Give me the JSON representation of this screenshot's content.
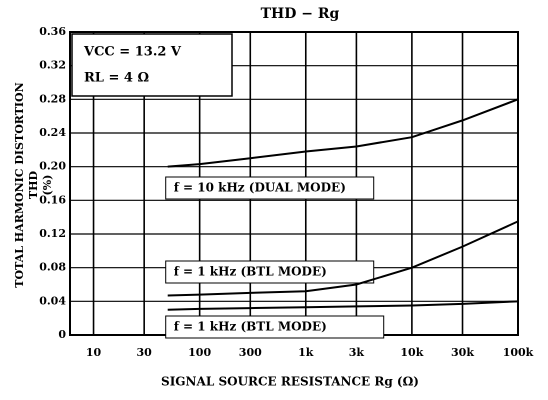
{
  "chart_data": {
    "type": "line",
    "title": "THD − Rg",
    "x_label": "SIGNAL SOURCE RESISTANCE  Rg  (Ω)",
    "y_label": [
      "TOTAL HARMONIC DISTORTION",
      "THD",
      "(%)"
    ],
    "annotations": [
      "VCC = 13.2 V",
      "RL = 4 Ω"
    ],
    "x": [
      50,
      100,
      300,
      1000,
      3000,
      10000,
      30000,
      100000
    ],
    "series": [
      {
        "name": "f = 10 kHz (DUAL MODE)",
        "color": "#000000",
        "values": [
          0.2,
          0.203,
          0.21,
          0.218,
          0.224,
          0.235,
          0.255,
          0.28
        ]
      },
      {
        "name": "f = 1 kHz  (BTL MODE)",
        "color": "#000000",
        "values": [
          0.047,
          0.048,
          0.05,
          0.052,
          0.06,
          0.08,
          0.105,
          0.135
        ]
      },
      {
        "name": "f = 1 kHz  (BTL MODE)",
        "color": "#000000",
        "values": [
          0.03,
          0.031,
          0.032,
          0.033,
          0.034,
          0.035,
          0.037,
          0.04
        ]
      }
    ],
    "log_x": true,
    "xlim": [
      6,
      100000
    ],
    "xticks": [
      10,
      30,
      100,
      300,
      {
        "value": 1000,
        "label": "1k"
      },
      {
        "value": 3000,
        "label": "3k"
      },
      {
        "value": 10000,
        "label": "10k"
      },
      {
        "value": 30000,
        "label": "30k"
      },
      {
        "value": 100000,
        "label": "100k"
      }
    ],
    "ylim": [
      0,
      0.36
    ],
    "yticks": [
      0,
      0.04,
      0.08,
      0.12,
      0.16,
      {
        "value": 0.2,
        "label": "0.20"
      },
      0.24,
      0.28,
      0.32,
      0.36
    ],
    "grid": true
  }
}
